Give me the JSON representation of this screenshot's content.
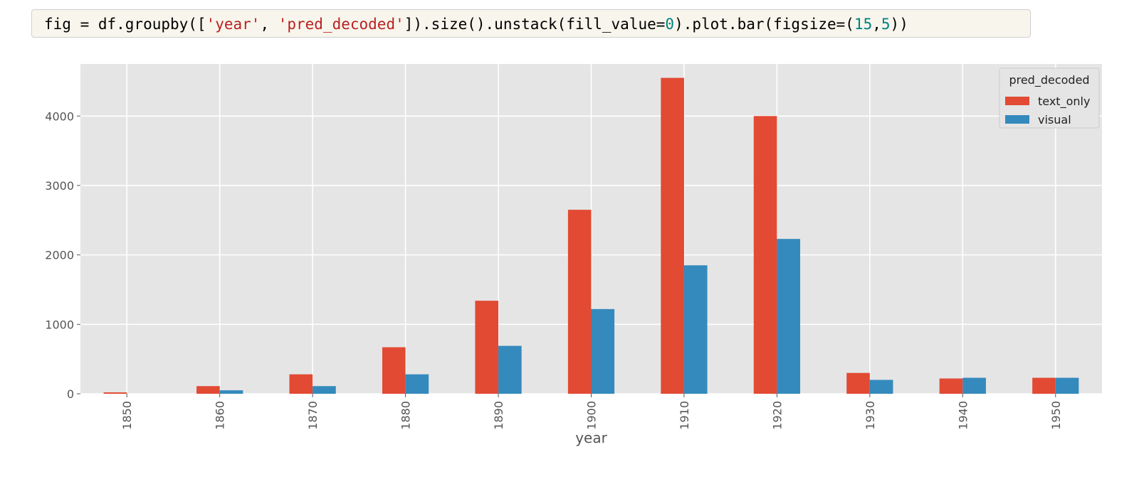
{
  "code": {
    "t1": "fig = df.groupby([",
    "s1": "'year'",
    "t2": ", ",
    "s2": "'pred_decoded'",
    "t3": "]).size().unstack(fill_value=",
    "n1": "0",
    "t4": ").plot.bar(figsize=(",
    "n2": "15",
    "t5": ",",
    "n3": "5",
    "t6": "))"
  },
  "chart_data": {
    "type": "bar",
    "categories": [
      "1850",
      "1860",
      "1870",
      "1880",
      "1890",
      "1900",
      "1910",
      "1920",
      "1930",
      "1940",
      "1950"
    ],
    "series": [
      {
        "name": "text_only",
        "color": "#e24a33",
        "values": [
          20,
          110,
          280,
          670,
          1340,
          2650,
          4550,
          4000,
          300,
          220,
          230
        ]
      },
      {
        "name": "visual",
        "color": "#348abd",
        "values": [
          0,
          50,
          110,
          280,
          690,
          1220,
          1850,
          2230,
          200,
          230,
          230
        ]
      }
    ],
    "xlabel": "year",
    "ylabel": "",
    "ylim": [
      0,
      4750
    ],
    "yticks": [
      0,
      1000,
      2000,
      3000,
      4000
    ],
    "legend": {
      "title": "pred_decoded",
      "position": "top-right"
    },
    "grid": true,
    "background": "#e5e5e5"
  }
}
